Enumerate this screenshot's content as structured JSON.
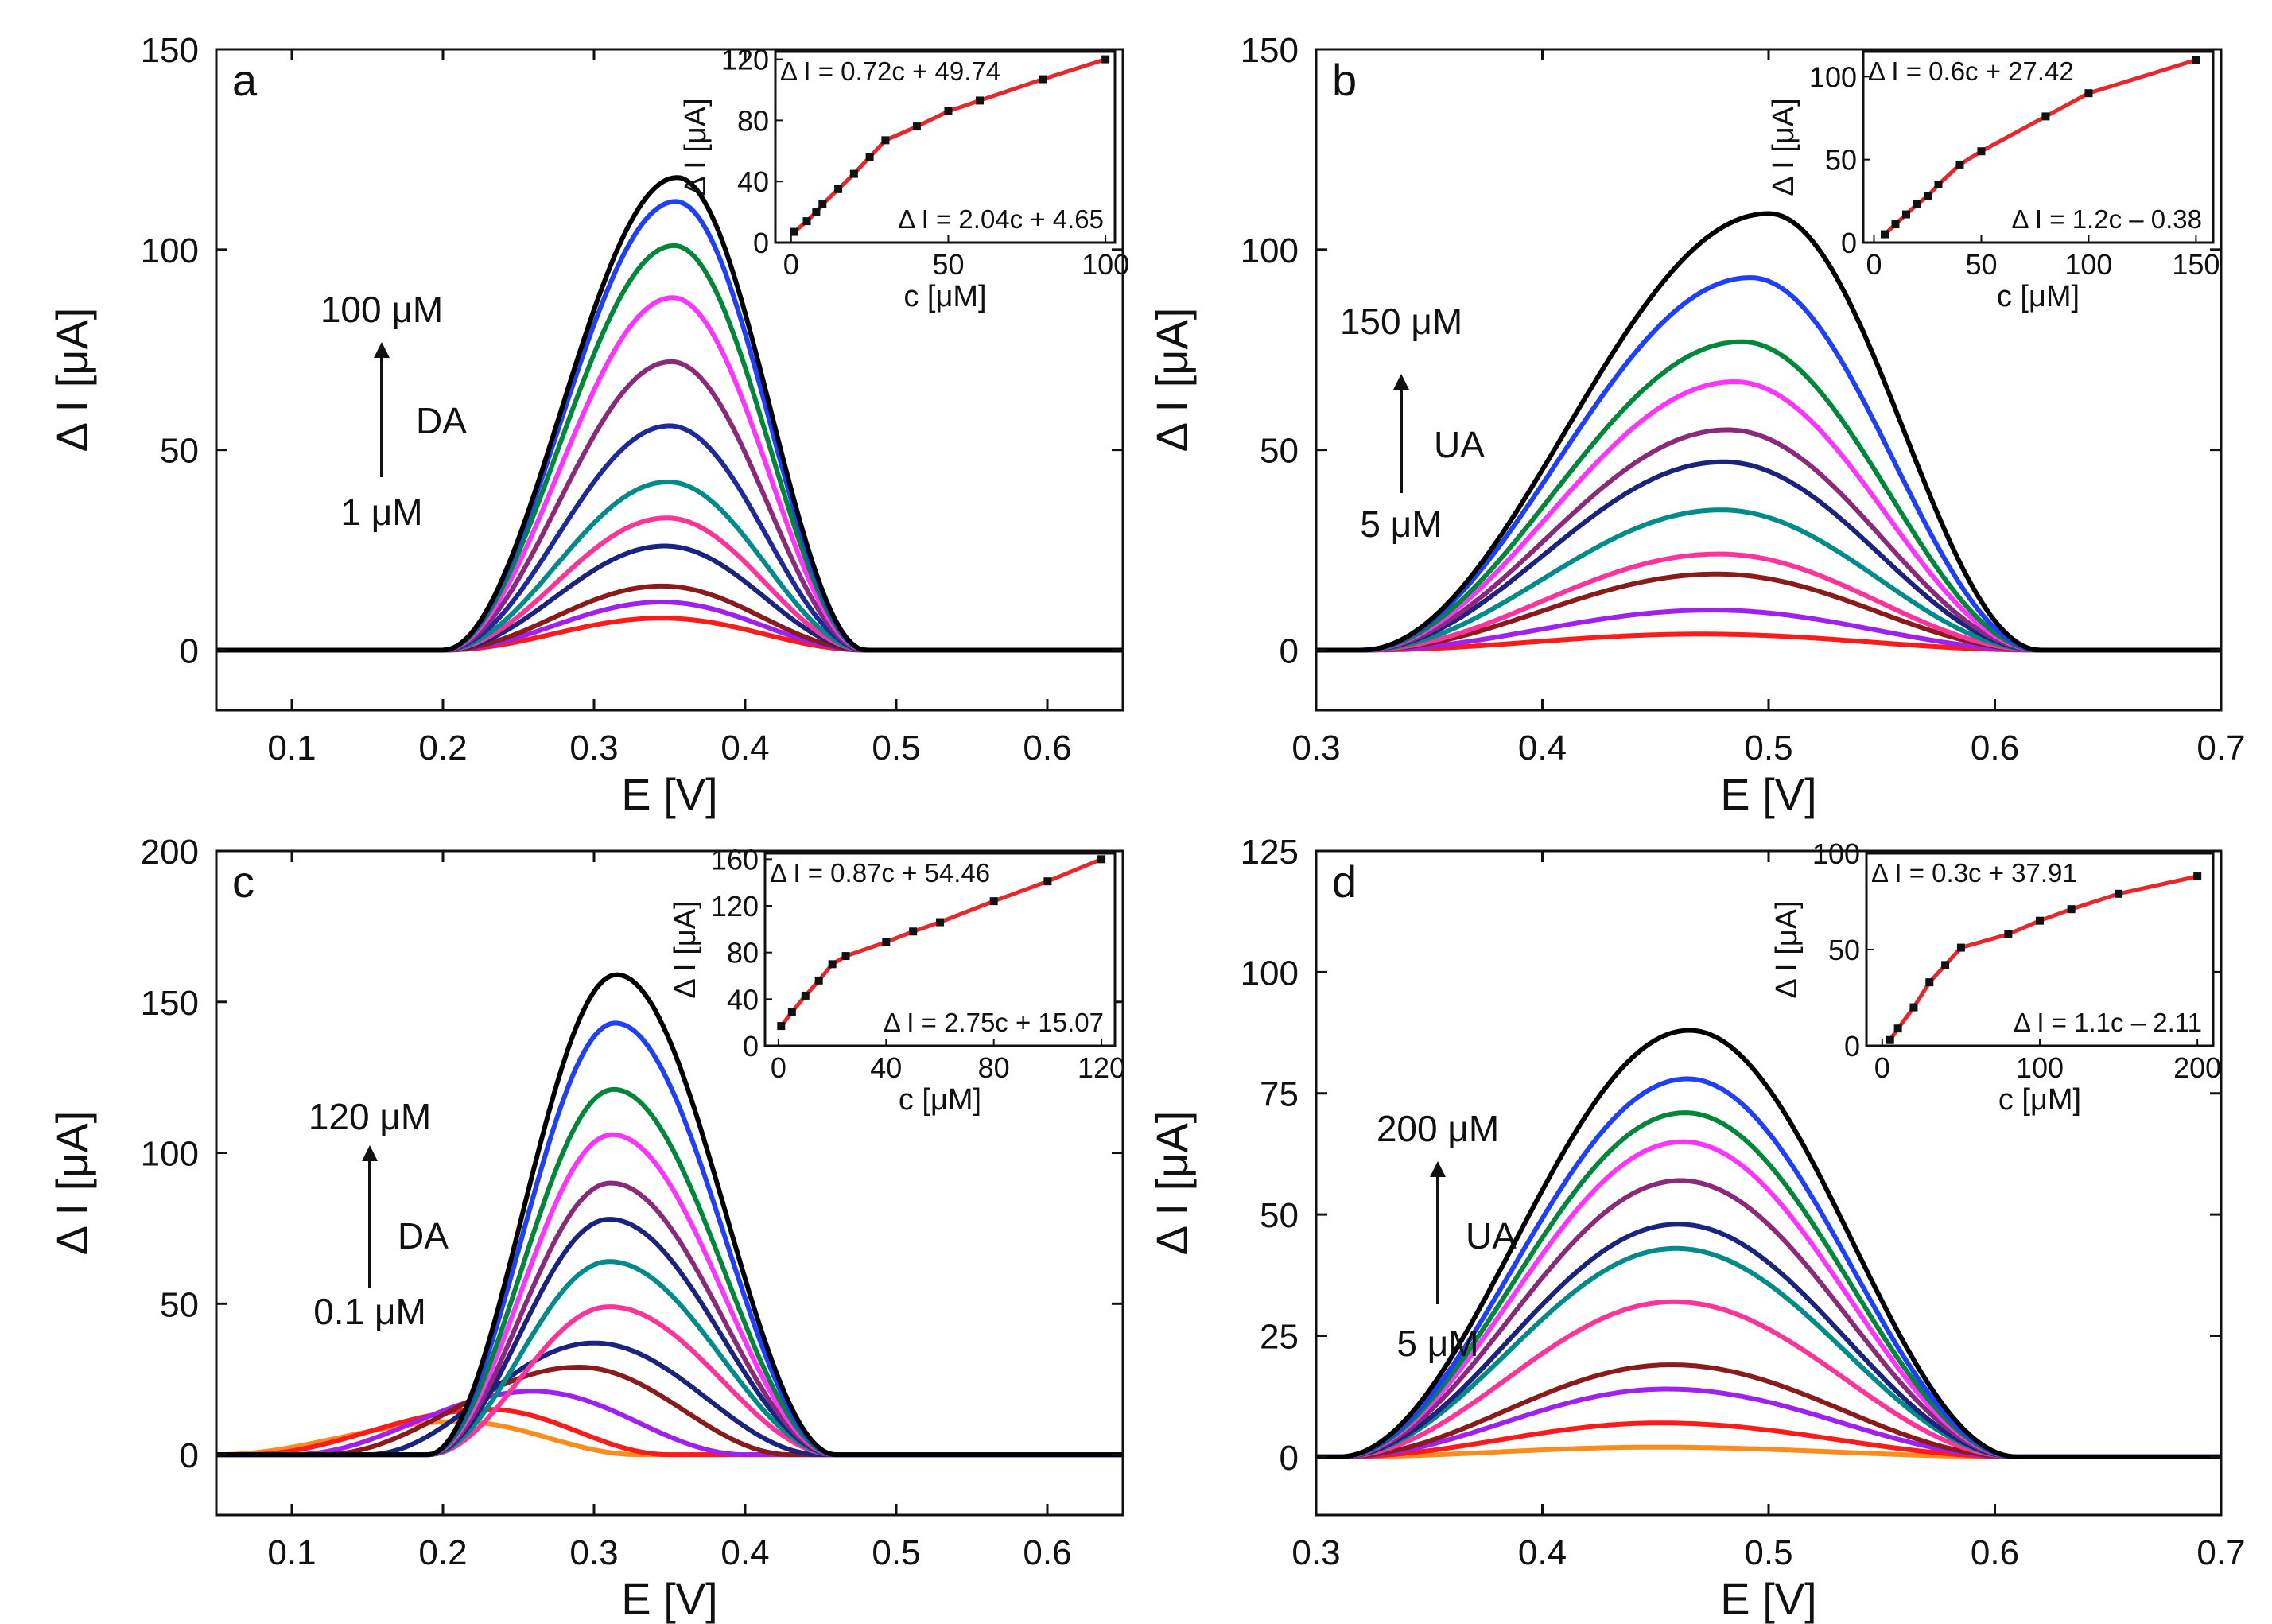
{
  "chart_data": [
    {
      "type": "line",
      "panel_label": "a",
      "xlabel": "E [V]",
      "ylabel": "Δ I [μA]",
      "xlim": [
        0.05,
        0.65
      ],
      "ylim": [
        -15,
        150
      ],
      "xticks": [
        "0.1",
        "0.2",
        "0.3",
        "0.4",
        "0.5",
        "0.6"
      ],
      "xtick_values": [
        0.1,
        0.2,
        0.3,
        0.4,
        0.5,
        0.6
      ],
      "yticks": [
        "0",
        "50",
        "100",
        "150"
      ],
      "ytick_values": [
        0,
        50,
        100,
        150
      ],
      "peak_model": {
        "start": 0.2,
        "end": 0.48
      },
      "series": [
        {
          "name": "c1",
          "color": "#ff1a1a",
          "peak_x": 0.345,
          "peak_y": 8
        },
        {
          "name": "c2",
          "color": "#a020f0",
          "peak_x": 0.345,
          "peak_y": 12
        },
        {
          "name": "c3",
          "color": "#8b1a1a",
          "peak_x": 0.345,
          "peak_y": 16
        },
        {
          "name": "c4",
          "color": "#1a237e",
          "peak_x": 0.347,
          "peak_y": 26
        },
        {
          "name": "c5",
          "color": "#ff3399",
          "peak_x": 0.348,
          "peak_y": 33
        },
        {
          "name": "c6",
          "color": "#008b8b",
          "peak_x": 0.349,
          "peak_y": 42
        },
        {
          "name": "c7",
          "color": "#1e2a9a",
          "peak_x": 0.35,
          "peak_y": 56
        },
        {
          "name": "c8",
          "color": "#8b2a7a",
          "peak_x": 0.351,
          "peak_y": 72
        },
        {
          "name": "c9",
          "color": "#ff33ff",
          "peak_x": 0.352,
          "peak_y": 88
        },
        {
          "name": "c10",
          "color": "#00873a",
          "peak_x": 0.353,
          "peak_y": 101
        },
        {
          "name": "c11",
          "color": "#1f3fff",
          "peak_x": 0.354,
          "peak_y": 112
        },
        {
          "name": "c12",
          "color": "#000000",
          "peak_x": 0.355,
          "peak_y": 118
        }
      ],
      "annotation": {
        "top": "100 μM",
        "analyte": "DA",
        "bottom": "1 μM"
      },
      "inset": {
        "xlabel": "c [μM]",
        "ylabel": "Δ I [μA]",
        "xlim": [
          -5,
          103
        ],
        "ylim": [
          0,
          125
        ],
        "xticks": [
          "0",
          "50",
          "100"
        ],
        "xtick_values": [
          0,
          50,
          100
        ],
        "yticks": [
          "0",
          "40",
          "80",
          "120"
        ],
        "ytick_values": [
          0,
          40,
          80,
          120
        ],
        "fit_high": "Δ I = 0.72c + 49.74",
        "fit_low": "Δ I = 2.04c + 4.65",
        "points": [
          [
            1,
            7
          ],
          [
            5,
            14
          ],
          [
            8,
            20
          ],
          [
            10,
            25
          ],
          [
            15,
            35
          ],
          [
            20,
            45
          ],
          [
            25,
            56
          ],
          [
            30,
            67
          ],
          [
            40,
            76
          ],
          [
            50,
            86
          ],
          [
            60,
            93
          ],
          [
            80,
            107
          ],
          [
            100,
            120
          ]
        ]
      }
    },
    {
      "type": "line",
      "panel_label": "b",
      "xlabel": "E [V]",
      "ylabel": "Δ I [μA]",
      "xlim": [
        0.3,
        0.7
      ],
      "ylim": [
        -15,
        150
      ],
      "xticks": [
        "0.3",
        "0.4",
        "0.5",
        "0.6",
        "0.7"
      ],
      "xtick_values": [
        0.3,
        0.4,
        0.5,
        0.6,
        0.7
      ],
      "yticks": [
        "0",
        "50",
        "100",
        "150"
      ],
      "ytick_values": [
        0,
        50,
        100,
        150
      ],
      "peak_model": {
        "start": 0.32,
        "end": 0.62
      },
      "series": [
        {
          "name": "c1",
          "color": "#ff1a1a",
          "peak_x": 0.47,
          "peak_y": 4
        },
        {
          "name": "c2",
          "color": "#a020f0",
          "peak_x": 0.475,
          "peak_y": 10
        },
        {
          "name": "c3",
          "color": "#8b1a1a",
          "peak_x": 0.477,
          "peak_y": 19
        },
        {
          "name": "c4",
          "color": "#ff3399",
          "peak_x": 0.478,
          "peak_y": 24
        },
        {
          "name": "c5",
          "color": "#008b8b",
          "peak_x": 0.479,
          "peak_y": 35
        },
        {
          "name": "c6",
          "color": "#1a237e",
          "peak_x": 0.48,
          "peak_y": 47
        },
        {
          "name": "c7",
          "color": "#8b2a7a",
          "peak_x": 0.482,
          "peak_y": 55
        },
        {
          "name": "c8",
          "color": "#ff33ff",
          "peak_x": 0.485,
          "peak_y": 67
        },
        {
          "name": "c9",
          "color": "#00873a",
          "peak_x": 0.488,
          "peak_y": 77
        },
        {
          "name": "c10",
          "color": "#1f3fff",
          "peak_x": 0.492,
          "peak_y": 93
        },
        {
          "name": "c11",
          "color": "#000000",
          "peak_x": 0.5,
          "peak_y": 109
        }
      ],
      "annotation": {
        "top": "150 μM",
        "analyte": "UA",
        "bottom": "5 μM"
      },
      "inset": {
        "xlabel": "c [μM]",
        "ylabel": "Δ I [μA]",
        "xlim": [
          -5,
          158
        ],
        "ylim": [
          0,
          115
        ],
        "xticks": [
          "0",
          "50",
          "100",
          "150"
        ],
        "xtick_values": [
          0,
          50,
          100,
          150
        ],
        "yticks": [
          "0",
          "50",
          "100"
        ],
        "ytick_values": [
          0,
          50,
          100
        ],
        "fit_high": "Δ I = 0.6c + 27.42",
        "fit_low": "Δ I = 1.2c – 0.38",
        "points": [
          [
            5,
            5
          ],
          [
            10,
            11
          ],
          [
            15,
            17
          ],
          [
            20,
            23
          ],
          [
            25,
            28
          ],
          [
            30,
            35
          ],
          [
            40,
            47
          ],
          [
            50,
            55
          ],
          [
            80,
            76
          ],
          [
            100,
            90
          ],
          [
            150,
            110
          ]
        ]
      }
    },
    {
      "type": "line",
      "panel_label": "c",
      "xlabel": "E [V]",
      "ylabel": "Δ I [μA]",
      "xlim": [
        0.05,
        0.65
      ],
      "ylim": [
        -20,
        200
      ],
      "xticks": [
        "0.1",
        "0.2",
        "0.3",
        "0.4",
        "0.5",
        "0.6"
      ],
      "xtick_values": [
        0.1,
        0.2,
        0.3,
        0.4,
        0.5,
        0.6
      ],
      "yticks": [
        "0",
        "50",
        "100",
        "150",
        "200"
      ],
      "ytick_values": [
        0,
        50,
        100,
        150,
        200
      ],
      "peak_model": {
        "start": 0.19,
        "end": 0.46
      },
      "series": [
        {
          "name": "c1",
          "color": "#ff8c1a",
          "peak_x": 0.21,
          "peak_y": 11,
          "start": 0.05,
          "end": 0.33
        },
        {
          "name": "c2",
          "color": "#ff1a1a",
          "peak_x": 0.23,
          "peak_y": 15,
          "start": 0.07,
          "end": 0.35
        },
        {
          "name": "c3",
          "color": "#a020f0",
          "peak_x": 0.26,
          "peak_y": 21,
          "start": 0.1,
          "end": 0.4
        },
        {
          "name": "c4",
          "color": "#8b1a1a",
          "peak_x": 0.29,
          "peak_y": 29,
          "start": 0.12,
          "end": 0.43
        },
        {
          "name": "c5",
          "color": "#1a237e",
          "peak_x": 0.3,
          "peak_y": 37,
          "start": 0.15,
          "end": 0.45
        },
        {
          "name": "c6",
          "color": "#ff3399",
          "peak_x": 0.31,
          "peak_y": 49
        },
        {
          "name": "c7",
          "color": "#008b8b",
          "peak_x": 0.31,
          "peak_y": 64
        },
        {
          "name": "c8",
          "color": "#1a237e",
          "peak_x": 0.31,
          "peak_y": 78
        },
        {
          "name": "c9",
          "color": "#8b2a7a",
          "peak_x": 0.311,
          "peak_y": 90
        },
        {
          "name": "c10",
          "color": "#ff33ff",
          "peak_x": 0.312,
          "peak_y": 106
        },
        {
          "name": "c11",
          "color": "#00873a",
          "peak_x": 0.313,
          "peak_y": 121
        },
        {
          "name": "c12",
          "color": "#1f3fff",
          "peak_x": 0.314,
          "peak_y": 143
        },
        {
          "name": "c13",
          "color": "#000000",
          "peak_x": 0.315,
          "peak_y": 159
        }
      ],
      "annotation": {
        "top": "120 μM",
        "analyte": "DA",
        "bottom": "0.1 μM"
      },
      "inset": {
        "xlabel": "c [μM]",
        "ylabel": "Δ I [μA]",
        "xlim": [
          -5,
          125
        ],
        "ylim": [
          0,
          165
        ],
        "xticks": [
          "0",
          "40",
          "80",
          "120"
        ],
        "xtick_values": [
          0,
          40,
          80,
          120
        ],
        "yticks": [
          "0",
          "40",
          "80",
          "120",
          "160"
        ],
        "ytick_values": [
          0,
          40,
          80,
          120,
          160
        ],
        "fit_high": "Δ I = 0.87c + 54.46",
        "fit_low": "Δ I = 2.75c + 15.07",
        "points": [
          [
            1,
            17
          ],
          [
            5,
            29
          ],
          [
            10,
            43
          ],
          [
            15,
            56
          ],
          [
            20,
            70
          ],
          [
            25,
            77
          ],
          [
            40,
            89
          ],
          [
            50,
            98
          ],
          [
            60,
            106
          ],
          [
            80,
            124
          ],
          [
            100,
            141
          ],
          [
            120,
            160
          ]
        ]
      }
    },
    {
      "type": "line",
      "panel_label": "d",
      "xlabel": "E [V]",
      "ylabel": "Δ I [μA]",
      "xlim": [
        0.3,
        0.7
      ],
      "ylim": [
        -12,
        125
      ],
      "xticks": [
        "0.3",
        "0.4",
        "0.5",
        "0.6",
        "0.7"
      ],
      "xtick_values": [
        0.3,
        0.4,
        0.5,
        0.6,
        0.7
      ],
      "yticks": [
        "0",
        "25",
        "50",
        "75",
        "100",
        "125"
      ],
      "ytick_values": [
        0,
        25,
        50,
        75,
        100,
        125
      ],
      "peak_model": {
        "start": 0.31,
        "end": 0.61
      },
      "series": [
        {
          "name": "c1",
          "color": "#ff8c1a",
          "peak_x": 0.45,
          "peak_y": 2
        },
        {
          "name": "c2",
          "color": "#ff1a1a",
          "peak_x": 0.452,
          "peak_y": 7
        },
        {
          "name": "c3",
          "color": "#a020f0",
          "peak_x": 0.455,
          "peak_y": 14
        },
        {
          "name": "c4",
          "color": "#8b1a1a",
          "peak_x": 0.457,
          "peak_y": 19
        },
        {
          "name": "c5",
          "color": "#ff3399",
          "peak_x": 0.458,
          "peak_y": 32
        },
        {
          "name": "c6",
          "color": "#008b8b",
          "peak_x": 0.459,
          "peak_y": 43
        },
        {
          "name": "c7",
          "color": "#1a237e",
          "peak_x": 0.46,
          "peak_y": 48
        },
        {
          "name": "c8",
          "color": "#8b2a7a",
          "peak_x": 0.461,
          "peak_y": 57
        },
        {
          "name": "c9",
          "color": "#ff33ff",
          "peak_x": 0.462,
          "peak_y": 65
        },
        {
          "name": "c10",
          "color": "#00873a",
          "peak_x": 0.463,
          "peak_y": 71
        },
        {
          "name": "c11",
          "color": "#1f3fff",
          "peak_x": 0.464,
          "peak_y": 78
        },
        {
          "name": "c12",
          "color": "#000000",
          "peak_x": 0.465,
          "peak_y": 88
        }
      ],
      "annotation": {
        "top": "200 μM",
        "analyte": "UA",
        "bottom": "5 μM"
      },
      "inset": {
        "xlabel": "c [μM]",
        "ylabel": "Δ I [μA]",
        "xlim": [
          -10,
          210
        ],
        "ylim": [
          0,
          100
        ],
        "xticks": [
          "0",
          "100",
          "200"
        ],
        "xtick_values": [
          0,
          100,
          200
        ],
        "yticks": [
          "0",
          "50",
          "100"
        ],
        "ytick_values": [
          0,
          50,
          100
        ],
        "fit_high": "Δ I = 0.3c + 37.91",
        "fit_low": "Δ I = 1.1c – 2.11",
        "points": [
          [
            5,
            3
          ],
          [
            10,
            9
          ],
          [
            20,
            20
          ],
          [
            30,
            33
          ],
          [
            40,
            42
          ],
          [
            50,
            51
          ],
          [
            80,
            58
          ],
          [
            100,
            65
          ],
          [
            120,
            71
          ],
          [
            150,
            79
          ],
          [
            200,
            88
          ]
        ]
      }
    }
  ]
}
